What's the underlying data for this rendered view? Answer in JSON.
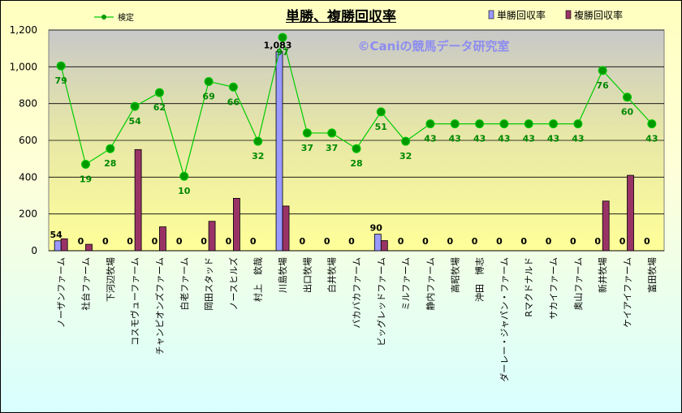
{
  "chart_data": {
    "type": "bar",
    "title": "単勝、複勝回収率",
    "watermark": "©Caniの競馬データ研究室",
    "categories": [
      "ノーザンファーム",
      "社台ファーム",
      "下河辺牧場",
      "コスモヴューファーム",
      "チャンピオンズファーム",
      "白老ファーム",
      "岡田スタッド",
      "ノースヒルズ",
      "村上　欽哉",
      "川島牧場",
      "出口牧場",
      "白井牧場",
      "バカバカファーム",
      "ビッグレッドファーム",
      "ミルファーム",
      "静内ファーム",
      "高昭牧場",
      "沖田　博志",
      "ダーレー・ジャパン・ファーム",
      "Rマクドナルド",
      "サカイファーム",
      "奥山ファーム",
      "新井牧場",
      "ケイアイファーム",
      "富田牧場"
    ],
    "ylim": [
      0,
      1200
    ],
    "yticks": [
      "0",
      "200",
      "400",
      "600",
      "800",
      "1,000",
      "1,200"
    ],
    "grid": true,
    "legend": {
      "placement": "top"
    },
    "series": [
      {
        "name": "単勝回収率",
        "kind": "bar",
        "color": "#9999ff",
        "values": [
          54,
          0,
          0,
          0,
          0,
          0,
          0,
          0,
          0,
          1083,
          0,
          0,
          0,
          90,
          0,
          0,
          0,
          0,
          0,
          0,
          0,
          0,
          0,
          0,
          0
        ],
        "labels": [
          "54",
          "0",
          "0",
          "0",
          "0",
          "0",
          "0",
          "0",
          "0",
          "1,083",
          "0",
          "0",
          "0",
          "90",
          "0",
          "0",
          "0",
          "0",
          "0",
          "0",
          "0",
          "0",
          "0",
          "0",
          "0"
        ]
      },
      {
        "name": "複勝回収率",
        "kind": "bar",
        "color": "#993366",
        "values": [
          65,
          35,
          0,
          550,
          130,
          0,
          160,
          285,
          0,
          243,
          0,
          0,
          0,
          55,
          0,
          0,
          0,
          0,
          0,
          0,
          0,
          0,
          270,
          410,
          0
        ]
      },
      {
        "name": "検定",
        "kind": "line",
        "color": "#00cc00",
        "marker": "#009900",
        "values": [
          1005,
          470,
          555,
          785,
          860,
          405,
          920,
          890,
          595,
          1160,
          640,
          640,
          555,
          755,
          595,
          690,
          690,
          690,
          690,
          690,
          690,
          690,
          980,
          835,
          690
        ],
        "labels": [
          "79",
          "19",
          "28",
          "54",
          "62",
          "10",
          "69",
          "66",
          "32",
          "97",
          "37",
          "37",
          "28",
          "51",
          "32",
          "43",
          "43",
          "43",
          "43",
          "43",
          "43",
          "43",
          "76",
          "60",
          "43"
        ]
      }
    ]
  }
}
